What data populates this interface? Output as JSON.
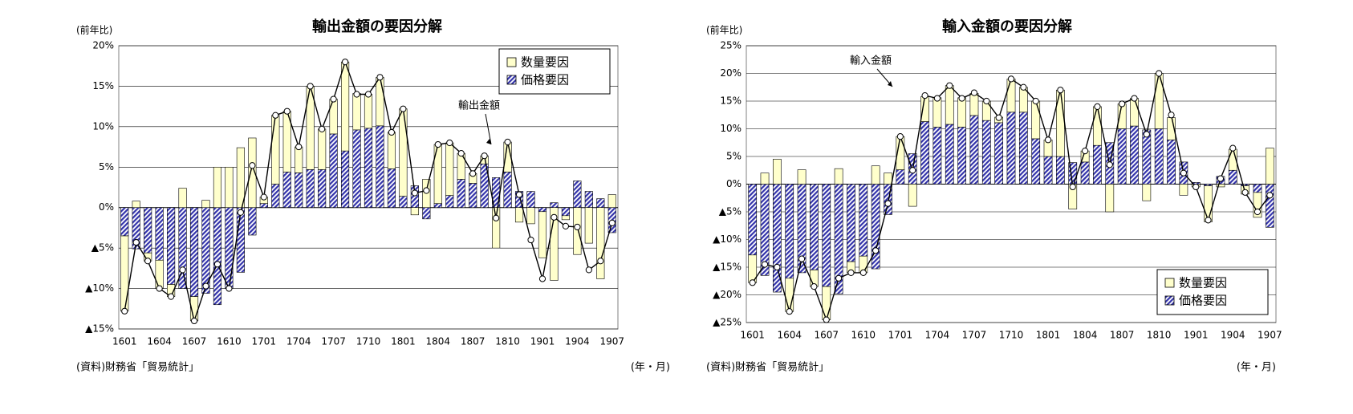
{
  "chart_data": [
    {
      "type": "bar",
      "title": "輸出金額の要因分解",
      "ylabel": "(前年比)",
      "source": "(資料)財務省「貿易統計」",
      "xunit": "(年・月)",
      "categories": [
        "1601",
        null,
        null,
        "1604",
        null,
        null,
        "1607",
        null,
        null,
        "1610",
        null,
        null,
        "1701",
        null,
        null,
        "1704",
        null,
        null,
        "1707",
        null,
        null,
        "1710",
        null,
        null,
        "1801",
        null,
        null,
        "1804",
        null,
        null,
        "1807",
        null,
        null,
        "1810",
        null,
        null,
        "1901",
        null,
        null,
        "1904",
        null,
        null,
        "1907"
      ],
      "series": [
        {
          "name": "数量要因",
          "color": "#ffffcc",
          "values": [
            -9.3,
            0.8,
            -1,
            -3.5,
            -1.5,
            2.4,
            -3,
            0.9,
            5,
            5,
            7.4,
            8.6,
            0.8,
            8.5,
            7.5,
            3.2,
            10.3,
            5,
            4.3,
            11,
            4.5,
            4.2,
            6,
            4.5,
            10.8,
            -0.9,
            3.5,
            7.3,
            6.5,
            3.2,
            1.2,
            1,
            -5,
            3.7,
            -1.8,
            -2,
            -5.7,
            -9,
            -0.5,
            -5.8,
            -4.4,
            -8.8,
            1.6
          ]
        },
        {
          "name": "価格要因",
          "color": "#3333aa",
          "hatch": true,
          "values": [
            -3.5,
            -5.1,
            -5.6,
            -6.5,
            -9.5,
            -10,
            -11,
            -10.6,
            -12,
            -10,
            -8,
            -3.4,
            0.5,
            2.9,
            4.4,
            4.3,
            4.7,
            4.7,
            9.1,
            7,
            9.6,
            9.8,
            10.1,
            4.8,
            1.4,
            2.7,
            -1.4,
            0.5,
            1.5,
            3.5,
            3,
            5.4,
            3.7,
            4.4,
            2,
            2,
            -0.5,
            0.6,
            -1,
            3.3,
            2,
            1.1,
            -3.1
          ]
        },
        {
          "name": "輸出金額",
          "type": "line",
          "color": "#000000",
          "values": [
            -12.8,
            -4.3,
            -6.6,
            -10,
            -11,
            -7.7,
            -14,
            -9.7,
            -7,
            -10,
            -0.6,
            5.2,
            1.3,
            11.4,
            11.9,
            7.5,
            15,
            9.7,
            13.4,
            18,
            14,
            14,
            16.1,
            9.3,
            12.2,
            1.8,
            2.1,
            7.8,
            8,
            6.7,
            4.2,
            6.4,
            -1.3,
            8.1,
            1.6,
            -4,
            -8.8,
            -1.2,
            -2.3,
            -2.4,
            -7.7,
            -6.6,
            -1.9
          ]
        }
      ],
      "ylim": [
        -15,
        20
      ],
      "yticks": [
        {
          "value": -15,
          "label": "▲15%"
        },
        {
          "value": -10,
          "label": "▲10%"
        },
        {
          "value": -5,
          "label": "▲5%"
        },
        {
          "value": 0,
          "label": "0%"
        },
        {
          "value": 5,
          "label": "5%"
        },
        {
          "value": 10,
          "label": "10%"
        },
        {
          "value": 15,
          "label": "15%"
        },
        {
          "value": 20,
          "label": "20%"
        }
      ],
      "grid": true,
      "legend": "upper right"
    },
    {
      "type": "bar",
      "title": "輸入金額の要因分解",
      "ylabel": "(前年比)",
      "source": "(資料)財務省「貿易統計」",
      "xunit": "(年・月)",
      "categories": [
        "1601",
        null,
        null,
        "1604",
        null,
        null,
        "1607",
        null,
        null,
        "1610",
        null,
        null,
        "1701",
        null,
        null,
        "1704",
        null,
        null,
        "1707",
        null,
        null,
        "1710",
        null,
        null,
        "1801",
        null,
        null,
        "1804",
        null,
        null,
        "1807",
        null,
        null,
        "1810",
        null,
        null,
        "1901",
        null,
        null,
        "1904",
        null,
        null,
        "1907"
      ],
      "series": [
        {
          "name": "数量要因",
          "color": "#ffffcc",
          "values": [
            -5,
            2,
            4.5,
            -6,
            2.6,
            -3,
            -6,
            2.8,
            -2,
            -3,
            3.3,
            2,
            6,
            -4,
            4.5,
            5.3,
            7,
            5.3,
            4,
            3.5,
            1,
            6,
            4.5,
            6.8,
            3,
            12,
            -4.5,
            2,
            7,
            -5,
            4.5,
            5,
            -3,
            10,
            4,
            -2,
            -0.5,
            -6.5,
            -0.5,
            3.8,
            -1.5,
            -4.5,
            6.5
          ]
        },
        {
          "name": "価格要因",
          "color": "#3333aa",
          "hatch": true,
          "values": [
            -12.8,
            -16.5,
            -19.5,
            -17,
            -16,
            -15.5,
            -18.5,
            -19.8,
            -14,
            -13,
            -15.3,
            -5.5,
            2.6,
            5.5,
            11.3,
            10.3,
            10.8,
            10.3,
            12.4,
            11.5,
            11.1,
            13,
            13,
            8.2,
            5,
            5,
            3.9,
            4,
            7,
            7.5,
            10,
            10.5,
            9.8,
            10,
            8,
            4,
            0.3,
            -0.3,
            1.4,
            2.5,
            -0.3,
            -1.5,
            -7.8
          ]
        },
        {
          "name": "輸入金額",
          "type": "line",
          "color": "#000000",
          "values": [
            -17.8,
            -14.5,
            -15,
            -23,
            -13.5,
            -18.5,
            -24.5,
            -17,
            -16,
            -16,
            -12,
            -3.5,
            8.6,
            2.5,
            16,
            15.5,
            17.8,
            15.5,
            16.5,
            15,
            12,
            19,
            17.5,
            15,
            8,
            17,
            -0.5,
            6,
            14,
            3.5,
            14.5,
            15.5,
            9,
            20,
            12.5,
            2,
            -0.5,
            -6.5,
            1,
            6.5,
            -1.5,
            -5,
            -2
          ]
        }
      ],
      "ylim": [
        -25,
        25
      ],
      "yticks": [
        {
          "value": -25,
          "label": "▲25%"
        },
        {
          "value": -20,
          "label": "▲20%"
        },
        {
          "value": -15,
          "label": "▲15%"
        },
        {
          "value": -10,
          "label": "▲10%"
        },
        {
          "value": -5,
          "label": "▲5%"
        },
        {
          "value": 0,
          "label": "0%"
        },
        {
          "value": 5,
          "label": "5%"
        },
        {
          "value": 10,
          "label": "10%"
        },
        {
          "value": 15,
          "label": "15%"
        },
        {
          "value": 20,
          "label": "20%"
        },
        {
          "value": 25,
          "label": "25%"
        }
      ],
      "grid": true,
      "legend": "lower right"
    }
  ]
}
